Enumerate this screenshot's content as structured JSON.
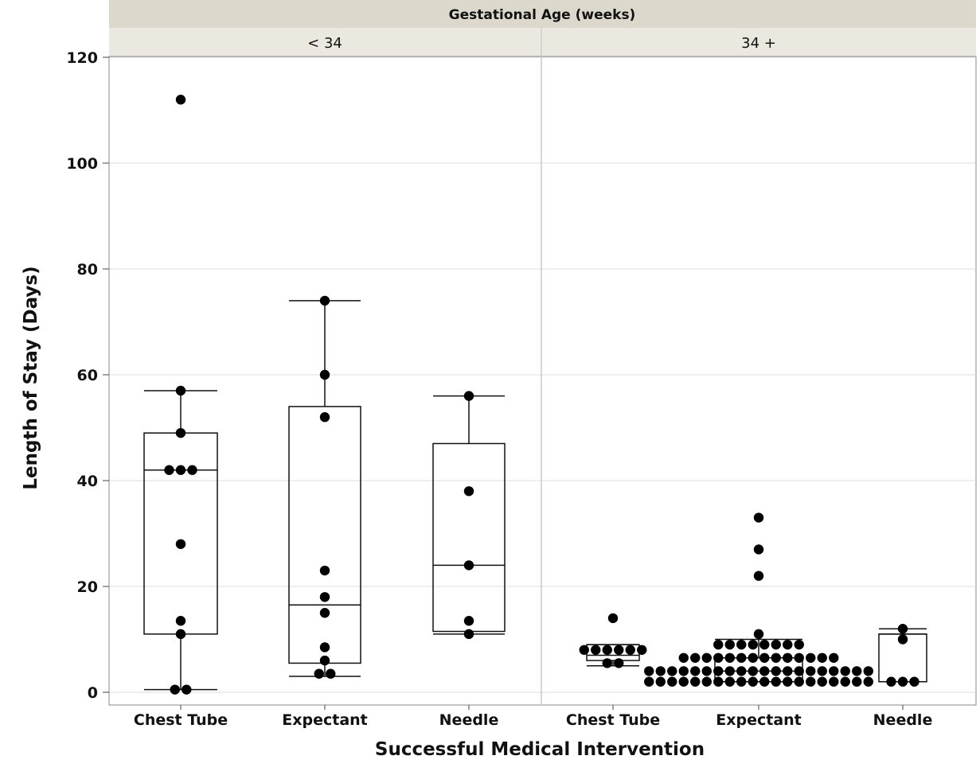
{
  "chart_data": {
    "type": "box",
    "facet_title": "Gestational Age (weeks)",
    "xlabel": "Successful Medical Intervention",
    "ylabel": "Length of Stay (Days)",
    "ylim": [
      0,
      120
    ],
    "yticks": [
      0,
      20,
      40,
      60,
      80,
      100,
      120
    ],
    "grid": true,
    "panels": [
      {
        "label": "< 34",
        "groups": [
          {
            "category": "Chest Tube",
            "box": {
              "whisker_low": 0.5,
              "q1": 11,
              "median": 42,
              "q3": 49,
              "whisker_high": 57
            },
            "points": [
              112,
              57,
              49,
              42,
              42,
              42,
              28,
              13.5,
              11,
              0.5,
              0.5
            ]
          },
          {
            "category": "Expectant",
            "box": {
              "whisker_low": 3,
              "q1": 5.5,
              "median": 16.5,
              "q3": 54,
              "whisker_high": 74
            },
            "points": [
              74,
              60,
              52,
              23,
              18,
              15,
              8.5,
              6,
              3.5,
              3.5
            ]
          },
          {
            "category": "Needle",
            "box": {
              "whisker_low": 11,
              "q1": 11.5,
              "median": 24,
              "q3": 47,
              "whisker_high": 56
            },
            "points": [
              56,
              38,
              24,
              13.5,
              11
            ]
          }
        ]
      },
      {
        "label": "34 +",
        "groups": [
          {
            "category": "Chest Tube",
            "box": {
              "whisker_low": 5,
              "q1": 6,
              "median": 7,
              "q3": 9,
              "whisker_high": 9
            },
            "points": [
              14,
              8,
              8,
              8,
              8,
              8,
              8,
              5.5,
              5.5
            ]
          },
          {
            "category": "Expectant",
            "box": {
              "whisker_low": 2,
              "q1": 2,
              "median": 4,
              "q3": 6.5,
              "whisker_high": 10
            },
            "points": [
              33,
              27,
              22,
              11,
              9,
              9,
              9,
              9,
              9,
              9,
              9,
              9,
              6.5,
              6.5,
              6.5,
              6.5,
              6.5,
              6.5,
              6.5,
              6.5,
              6.5,
              6.5,
              6.5,
              6.5,
              6.5,
              6.5,
              4,
              4,
              4,
              4,
              4,
              4,
              4,
              4,
              4,
              4,
              4,
              4,
              4,
              4,
              4,
              4,
              4,
              4,
              4,
              4,
              2,
              2,
              2,
              2,
              2,
              2,
              2,
              2,
              2,
              2,
              2,
              2,
              2,
              2,
              2,
              2,
              2,
              2,
              2,
              2
            ]
          },
          {
            "category": "Needle",
            "box": {
              "whisker_low": 2,
              "q1": 2,
              "median": 11,
              "q3": 11,
              "whisker_high": 12
            },
            "points": [
              12,
              10,
              2,
              2,
              2
            ]
          }
        ]
      }
    ]
  }
}
